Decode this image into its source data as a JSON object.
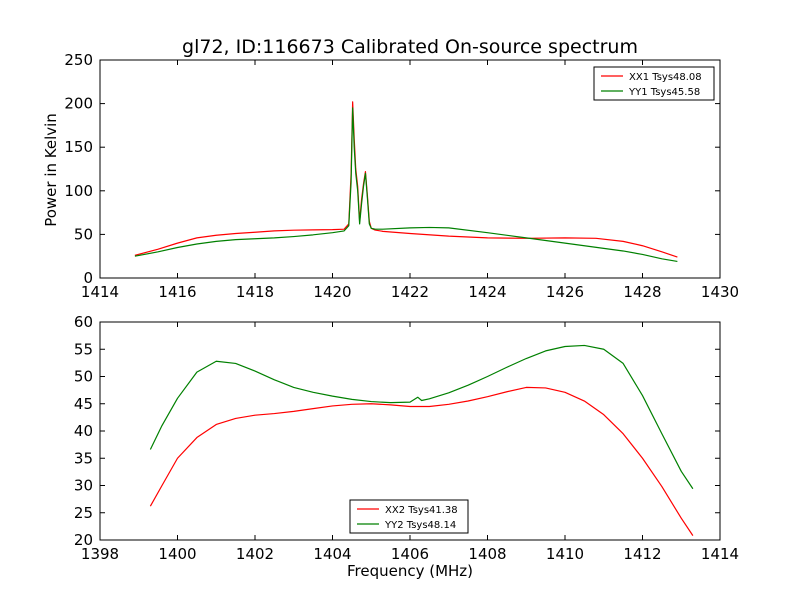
{
  "figure": {
    "title": "gl72, ID:116673 Calibrated On-source spectrum",
    "xlabel": "Frequency (MHz)",
    "ylabel_top": "Power in Kelvin"
  },
  "chart_data": [
    {
      "type": "line",
      "title": "gl72, ID:116673 Calibrated On-source spectrum",
      "xlabel": "",
      "ylabel": "Power in Kelvin",
      "xlim": [
        1414,
        1430
      ],
      "ylim": [
        0,
        250
      ],
      "xticks": [
        1414,
        1416,
        1418,
        1420,
        1422,
        1424,
        1426,
        1428,
        1430
      ],
      "yticks": [
        0,
        50,
        100,
        150,
        200,
        250
      ],
      "legend": "top-right",
      "series": [
        {
          "name": "XX1 Tsys48.08",
          "color": "#ff0000",
          "x": [
            1414.9,
            1415.5,
            1416.0,
            1416.5,
            1417.0,
            1417.5,
            1418.0,
            1418.5,
            1419.0,
            1419.5,
            1420.0,
            1420.3,
            1420.42,
            1420.48,
            1420.52,
            1420.56,
            1420.6,
            1420.65,
            1420.7,
            1420.75,
            1420.8,
            1420.85,
            1420.9,
            1420.95,
            1421.0,
            1421.05,
            1421.1,
            1421.3,
            1422.0,
            1423.0,
            1424.0,
            1425.0,
            1426.0,
            1426.8,
            1427.5,
            1428.0,
            1428.5,
            1428.9
          ],
          "y": [
            26,
            33,
            40,
            46,
            49,
            51,
            52.5,
            54,
            54.8,
            55.2,
            55.5,
            56,
            62,
            120,
            202,
            160,
            125,
            105,
            65,
            90,
            108,
            122,
            95,
            65,
            57,
            56,
            55,
            53.5,
            51,
            48,
            46,
            45.5,
            46,
            45.5,
            42,
            37,
            30,
            24
          ]
        },
        {
          "name": "YY1 Tsys45.58",
          "color": "#008000",
          "x": [
            1414.9,
            1415.5,
            1416.0,
            1416.5,
            1417.0,
            1417.5,
            1418.0,
            1418.5,
            1419.0,
            1419.5,
            1420.0,
            1420.3,
            1420.42,
            1420.48,
            1420.52,
            1420.56,
            1420.6,
            1420.65,
            1420.7,
            1420.75,
            1420.8,
            1420.85,
            1420.9,
            1420.95,
            1421.0,
            1421.05,
            1421.1,
            1421.3,
            1422.0,
            1422.5,
            1423.0,
            1424.0,
            1425.0,
            1426.0,
            1427.0,
            1427.5,
            1428.0,
            1428.5,
            1428.9
          ],
          "y": [
            25,
            30,
            35,
            39,
            42,
            44,
            45,
            46,
            47.5,
            49.5,
            52,
            54,
            60,
            110,
            195,
            150,
            120,
            100,
            62,
            85,
            105,
            120,
            92,
            62,
            57,
            56.5,
            56,
            56,
            57.5,
            58,
            57.5,
            52,
            46,
            40,
            34,
            31,
            27,
            22,
            19
          ]
        }
      ]
    },
    {
      "type": "line",
      "title": "",
      "xlabel": "Frequency (MHz)",
      "ylabel": "",
      "xlim": [
        1398,
        1414
      ],
      "ylim": [
        20,
        60
      ],
      "xticks": [
        1398,
        1400,
        1402,
        1404,
        1406,
        1408,
        1410,
        1412,
        1414
      ],
      "yticks": [
        20,
        25,
        30,
        35,
        40,
        45,
        50,
        55,
        60
      ],
      "legend": "bottom-center",
      "series": [
        {
          "name": "XX2 Tsys41.38",
          "color": "#ff0000",
          "x": [
            1399.3,
            1399.6,
            1400.0,
            1400.5,
            1401.0,
            1401.5,
            1402.0,
            1402.5,
            1403.0,
            1403.5,
            1404.0,
            1404.5,
            1405.0,
            1405.5,
            1406.0,
            1406.5,
            1407.0,
            1407.5,
            1408.0,
            1408.5,
            1409.0,
            1409.5,
            1410.0,
            1410.5,
            1411.0,
            1411.5,
            1412.0,
            1412.5,
            1413.0,
            1413.3
          ],
          "y": [
            26.2,
            30,
            35,
            38.8,
            41.2,
            42.3,
            42.9,
            43.2,
            43.6,
            44.1,
            44.6,
            44.9,
            45,
            44.8,
            44.5,
            44.5,
            44.9,
            45.5,
            46.3,
            47.2,
            48,
            47.9,
            47.1,
            45.5,
            43,
            39.5,
            35,
            29.8,
            24,
            20.8
          ]
        },
        {
          "name": "YY2 Tsys48.14",
          "color": "#008000",
          "x": [
            1399.3,
            1399.6,
            1400.0,
            1400.5,
            1401.0,
            1401.5,
            1402.0,
            1402.5,
            1403.0,
            1403.5,
            1404.0,
            1404.5,
            1405.0,
            1405.5,
            1406.0,
            1406.2,
            1406.3,
            1406.5,
            1407.0,
            1407.5,
            1408.0,
            1408.5,
            1409.0,
            1409.5,
            1410.0,
            1410.5,
            1411.0,
            1411.5,
            1412.0,
            1412.5,
            1413.0,
            1413.3
          ],
          "y": [
            36.6,
            41,
            46,
            50.8,
            52.8,
            52.4,
            51,
            49.4,
            48,
            47.1,
            46.4,
            45.8,
            45.4,
            45.2,
            45.3,
            46.2,
            45.6,
            45.9,
            47,
            48.4,
            50,
            51.7,
            53.3,
            54.7,
            55.5,
            55.7,
            55,
            52.4,
            46.5,
            39.5,
            32.6,
            29.4
          ]
        }
      ]
    }
  ]
}
